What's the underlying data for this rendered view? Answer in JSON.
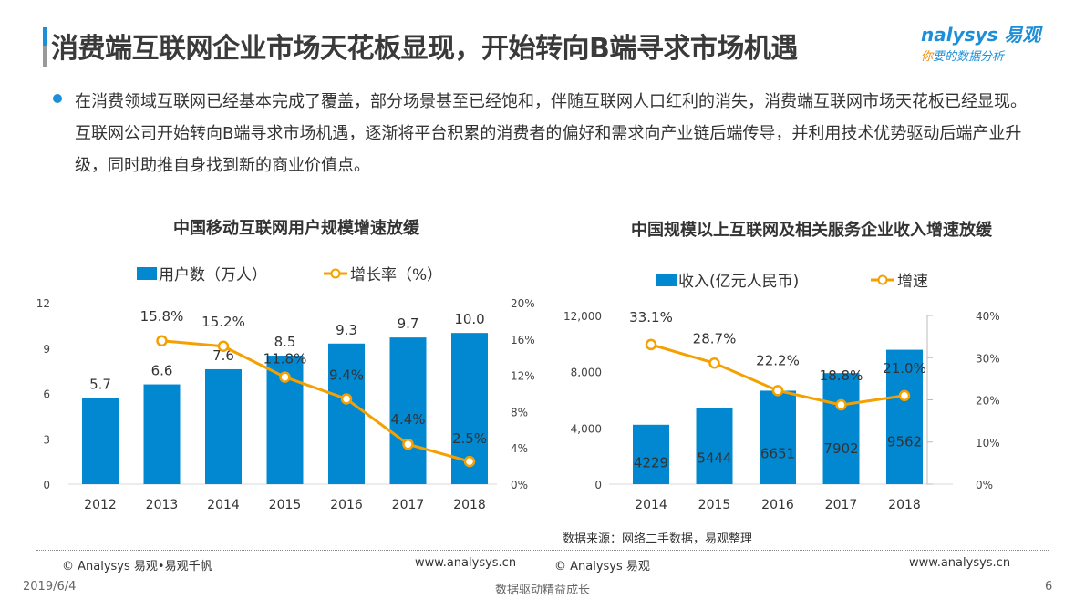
{
  "header": {
    "title": "消费端互联网企业市场天花板显现，开始转向B端寻求市场机遇",
    "logo_brand": "nalysys 易观",
    "logo_slogan_accent": "你",
    "logo_slogan": "要的数据分析"
  },
  "bullet": "在消费领域互联网已经基本完成了覆盖，部分场景甚至已经饱和，伴随互联网人口红利的消失，消费端互联网市场天花板已经显现。互联网公司开始转向B端寻求市场机遇，逐渐将平台积累的消费者的偏好和需求向产业链后端传导，并利用技术优势驱动后端产业升级，同时助推自身找到新的商业价值点。",
  "chart_data": [
    {
      "type": "bar+line",
      "title": "中国移动互联网用户规模增速放缓",
      "categories": [
        "2012",
        "2013",
        "2014",
        "2015",
        "2016",
        "2017",
        "2018"
      ],
      "series": [
        {
          "name": "用户数（万人）",
          "type": "bar",
          "axis": "left",
          "values": [
            5.7,
            6.6,
            7.6,
            8.5,
            9.3,
            9.7,
            10.0
          ],
          "labels": [
            "5.7",
            "6.6",
            "7.6",
            "8.5",
            "9.3",
            "9.7",
            "10.0"
          ]
        },
        {
          "name": "增长率（%）",
          "type": "line",
          "axis": "right",
          "values": [
            null,
            15.8,
            15.2,
            11.8,
            9.4,
            4.4,
            2.5
          ],
          "labels": [
            "",
            "15.8%",
            "15.2%",
            "11.8%",
            "9.4%",
            "4.4%",
            "2.5%"
          ]
        }
      ],
      "ylim": [
        0,
        12
      ],
      "yticks": [
        "0",
        "3",
        "6",
        "9",
        "12"
      ],
      "y2lim": [
        0,
        20
      ],
      "y2ticks": [
        "0%",
        "4%",
        "8%",
        "12%",
        "16%",
        "20%"
      ],
      "legend": "top"
    },
    {
      "type": "bar+line",
      "title": "中国规模以上互联网及相关服务企业收入增速放缓",
      "categories": [
        "2014",
        "2015",
        "2016",
        "2017",
        "2018"
      ],
      "series": [
        {
          "name": "收入(亿元人民币)",
          "type": "bar",
          "axis": "left",
          "values": [
            4229,
            5444,
            6651,
            7902,
            9562
          ],
          "labels": [
            "4229",
            "5444",
            "6651",
            "7902",
            "9562"
          ]
        },
        {
          "name": "增速",
          "type": "line",
          "axis": "right",
          "values": [
            33.1,
            28.7,
            22.2,
            18.8,
            21.0
          ],
          "labels": [
            "33.1%",
            "28.7%",
            "22.2%",
            "18.8%",
            "21.0%"
          ]
        }
      ],
      "ylim": [
        0,
        12000
      ],
      "yticks": [
        "0",
        "4,000",
        "8,000",
        "12,000"
      ],
      "y2lim": [
        0,
        40
      ],
      "y2ticks": [
        "0%",
        "10%",
        "20%",
        "30%",
        "40%"
      ],
      "legend": "top"
    }
  ],
  "colors": {
    "bar": "#0288d1",
    "line": "#f5a000",
    "accent": "#1d8fd8"
  },
  "source": "数据来源：网络二手数据，易观整理",
  "footer": {
    "left_copyright": "© Analysys 易观•易观千帆",
    "left_url": "www.analysys.cn",
    "right_copyright": "© Analysys 易观",
    "right_url": "www.analysys.cn",
    "date": "2019/6/4",
    "slogan": "数据驱动精益成长",
    "page": "6"
  }
}
